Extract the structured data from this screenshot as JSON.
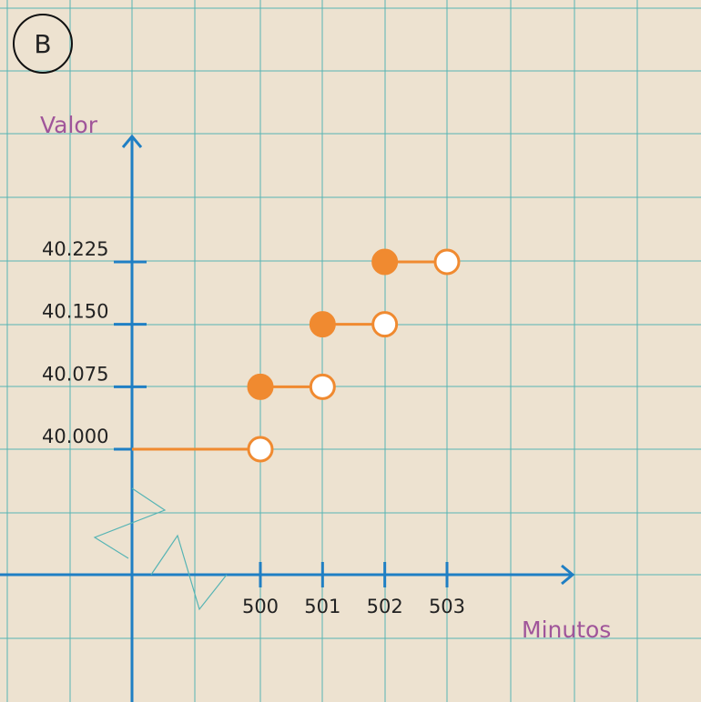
{
  "badge": {
    "label": "B"
  },
  "colors": {
    "grid": "#56b4b4",
    "axis": "#1f7fc4",
    "series": "#f08a30",
    "title": "#a0559a",
    "background": "#ede2d0"
  },
  "chart_data": {
    "type": "step",
    "xlabel": "Minutos",
    "ylabel": "Valor",
    "x_ticks": [
      {
        "value": 500,
        "label": "500"
      },
      {
        "value": 501,
        "label": "501"
      },
      {
        "value": 502,
        "label": "502"
      },
      {
        "value": 503,
        "label": "503"
      }
    ],
    "y_ticks": [
      {
        "value": 40.0,
        "label": "40.000"
      },
      {
        "value": 40.075,
        "label": "40.075"
      },
      {
        "value": 40.15,
        "label": "40.150"
      },
      {
        "value": 40.225,
        "label": "40.225"
      }
    ],
    "segments": [
      {
        "x_start": 500,
        "x_end": 501,
        "y": 40.075,
        "start_closed": true,
        "end_closed": false
      },
      {
        "x_start": 501,
        "x_end": 502,
        "y": 40.15,
        "start_closed": true,
        "end_closed": false
      },
      {
        "x_start": 502,
        "x_end": 503,
        "y": 40.225,
        "start_closed": true,
        "end_closed": false
      }
    ],
    "initial_segment": {
      "x_end": 500,
      "y": 40.0,
      "end_closed": false
    },
    "axis_breaks": true,
    "grid": true
  }
}
